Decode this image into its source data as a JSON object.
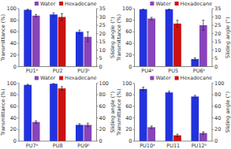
{
  "chart_data": [
    {
      "type": "bar",
      "categories": [
        "PU1ᵃ",
        "PU2",
        "PU3ᵇ"
      ],
      "ylabel": "Transmittance (%)",
      "y2label": "Sliding angle (°)",
      "ylim": [
        0,
        100
      ],
      "yticks": [
        0,
        20,
        40,
        60,
        80,
        100
      ],
      "y2lim": [
        0,
        35
      ],
      "y2ticks": [
        0,
        5,
        10,
        15,
        20,
        25,
        30,
        35
      ],
      "grid": false,
      "legend": "upper right",
      "series": [
        {
          "color": "#2233dd",
          "values": [
            98,
            90,
            60
          ],
          "errors": [
            1,
            3,
            3
          ]
        },
        {
          "name": "Water",
          "color": "#8844bb",
          "values": [
            88,
            null,
            null
          ],
          "errors": [
            2,
            null,
            null
          ]
        },
        {
          "name": "Hexadecane",
          "color": "#cc1111",
          "axis": "y2",
          "values": [
            null,
            30,
            null
          ],
          "errors": [
            null,
            2,
            null
          ]
        },
        {
          "name": "Water",
          "color": "#8844bb",
          "axis": "y2",
          "values": [
            null,
            null,
            18
          ],
          "errors": [
            null,
            null,
            3
          ]
        }
      ]
    },
    {
      "type": "bar",
      "categories": [
        "PU4ᵃ",
        "PU5",
        "PU6ᵇ"
      ],
      "ylabel": "Transmittance (%)",
      "y2label": "Sliding angle (°)",
      "ylim": [
        0,
        100
      ],
      "yticks": [
        0,
        20,
        40,
        60,
        80,
        100
      ],
      "y2lim": [
        0,
        35
      ],
      "y2ticks": [
        0,
        5,
        10,
        15,
        20,
        25,
        30,
        35
      ],
      "grid": false,
      "legend": "upper right",
      "series": [
        {
          "color": "#2233dd",
          "values": [
            99,
            99,
            13
          ],
          "errors": [
            1,
            1,
            2
          ]
        },
        {
          "name": "Water",
          "color": "#8844bb",
          "values": [
            83,
            null,
            null
          ],
          "errors": [
            2,
            null,
            null
          ]
        },
        {
          "name": "Hexadecane",
          "color": "#cc1111",
          "axis": "y2",
          "values": [
            null,
            26,
            null
          ],
          "errors": [
            null,
            2,
            null
          ]
        },
        {
          "name": "Water",
          "color": "#8844bb",
          "axis": "y2",
          "values": [
            null,
            null,
            25
          ],
          "errors": [
            null,
            null,
            3
          ]
        }
      ]
    },
    {
      "type": "bar",
      "categories": [
        "PU7ᵃ",
        "PU8",
        "PU9ᵇ"
      ],
      "ylabel": "Transmittance (%)",
      "y2label": "Sliding angle (°)",
      "ylim": [
        0,
        100
      ],
      "yticks": [
        0,
        20,
        40,
        60,
        80,
        100
      ],
      "y2lim": [
        0,
        100
      ],
      "y2ticks": [
        0,
        20,
        40,
        60,
        80,
        100
      ],
      "grid": false,
      "legend": "upper right",
      "series": [
        {
          "color": "#2233dd",
          "values": [
            97,
            99,
            28
          ],
          "errors": [
            1,
            1,
            2
          ]
        },
        {
          "name": "Water",
          "color": "#8844bb",
          "values": [
            33,
            null,
            null
          ],
          "errors": [
            2,
            null,
            null
          ]
        },
        {
          "name": "Hexadecane",
          "color": "#cc1111",
          "axis": "y2",
          "values": [
            null,
            91,
            null
          ],
          "errors": [
            null,
            3,
            null
          ]
        },
        {
          "name": "Water",
          "color": "#8844bb",
          "axis": "y2",
          "values": [
            null,
            null,
            28
          ],
          "errors": [
            null,
            null,
            3
          ]
        }
      ]
    },
    {
      "type": "bar",
      "categories": [
        "PU10ᵃ",
        "PU11",
        "PU12ᵇ"
      ],
      "ylabel": "Transmittance (%)",
      "y2label": "Sliding angle (°)",
      "ylim": [
        0,
        100
      ],
      "yticks": [
        0,
        20,
        40,
        60,
        80,
        100
      ],
      "y2lim": [
        0,
        100
      ],
      "y2ticks": [
        0,
        20,
        40,
        60,
        80,
        100
      ],
      "grid": false,
      "legend": "upper right",
      "series": [
        {
          "color": "#2233dd",
          "values": [
            90,
            84,
            77
          ],
          "errors": [
            3,
            2,
            2
          ]
        },
        {
          "name": "Water",
          "color": "#8844bb",
          "values": [
            24,
            null,
            null
          ],
          "errors": [
            2,
            null,
            null
          ]
        },
        {
          "name": "Hexadecane",
          "color": "#cc1111",
          "axis": "y2",
          "values": [
            null,
            10,
            null
          ],
          "errors": [
            null,
            2,
            null
          ]
        },
        {
          "name": "Water",
          "color": "#8844bb",
          "axis": "y2",
          "values": [
            null,
            null,
            14
          ],
          "errors": [
            null,
            null,
            2
          ]
        }
      ]
    }
  ]
}
